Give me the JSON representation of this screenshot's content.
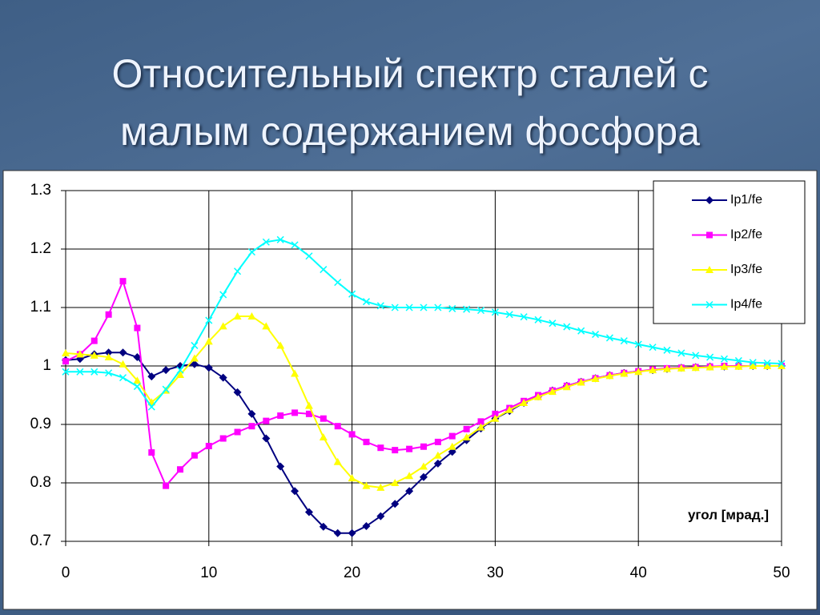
{
  "chart_data": {
    "type": "line",
    "title": "Относительный спектр сталей с малым содержанием фосфора",
    "x_label": "угол [мрад.]",
    "x": [
      0,
      1,
      2,
      3,
      4,
      5,
      6,
      7,
      8,
      9,
      10,
      11,
      12,
      13,
      14,
      15,
      16,
      17,
      18,
      19,
      20,
      21,
      22,
      23,
      24,
      25,
      26,
      27,
      28,
      29,
      30,
      31,
      32,
      33,
      34,
      35,
      36,
      37,
      38,
      39,
      40,
      41,
      42,
      43,
      44,
      45,
      46,
      47,
      48,
      49,
      50
    ],
    "xlim": [
      0,
      50
    ],
    "xticks": [
      0,
      10,
      20,
      30,
      40,
      50
    ],
    "ylim": [
      0.7,
      1.3
    ],
    "yticks": [
      0.7,
      0.8,
      0.9,
      1,
      1.1,
      1.2,
      1.3
    ],
    "grid": true,
    "legend": "top-right",
    "series": [
      {
        "name": "Ip1/fe",
        "color": "#000080",
        "marker": "diamond",
        "values": [
          1.01,
          1.012,
          1.02,
          1.023,
          1.023,
          1.015,
          0.982,
          0.993,
          1.0,
          1.003,
          0.997,
          0.98,
          0.955,
          0.918,
          0.876,
          0.828,
          0.786,
          0.75,
          0.725,
          0.714,
          0.714,
          0.726,
          0.743,
          0.764,
          0.786,
          0.81,
          0.833,
          0.853,
          0.873,
          0.893,
          0.91,
          0.923,
          0.937,
          0.948,
          0.958,
          0.966,
          0.973,
          0.979,
          0.984,
          0.988,
          0.991,
          0.993,
          0.995,
          0.997,
          0.998,
          0.999,
          0.999,
          1.0,
          1.0,
          1.0,
          1.0
        ]
      },
      {
        "name": "Ip2/fe",
        "color": "#ff00ff",
        "marker": "square",
        "values": [
          1.008,
          1.02,
          1.043,
          1.088,
          1.145,
          1.065,
          0.852,
          0.795,
          0.823,
          0.847,
          0.863,
          0.876,
          0.887,
          0.897,
          0.906,
          0.915,
          0.92,
          0.918,
          0.91,
          0.897,
          0.883,
          0.87,
          0.86,
          0.856,
          0.858,
          0.862,
          0.87,
          0.88,
          0.892,
          0.905,
          0.918,
          0.928,
          0.94,
          0.95,
          0.958,
          0.966,
          0.973,
          0.979,
          0.984,
          0.988,
          0.991,
          0.994,
          0.996,
          0.997,
          0.998,
          0.999,
          1.0,
          1.0,
          1.0,
          1.0,
          1.0
        ]
      },
      {
        "name": "Ip3/fe",
        "color": "#ffff00",
        "marker": "triangle",
        "values": [
          1.022,
          1.02,
          1.018,
          1.015,
          1.003,
          0.975,
          0.938,
          0.958,
          0.985,
          1.013,
          1.042,
          1.068,
          1.085,
          1.085,
          1.068,
          1.035,
          0.987,
          0.932,
          0.878,
          0.836,
          0.808,
          0.795,
          0.792,
          0.8,
          0.812,
          0.828,
          0.847,
          0.862,
          0.878,
          0.895,
          0.91,
          0.925,
          0.937,
          0.947,
          0.956,
          0.964,
          0.972,
          0.978,
          0.983,
          0.987,
          0.99,
          0.993,
          0.995,
          0.996,
          0.997,
          0.998,
          0.999,
          0.999,
          1.0,
          1.0,
          1.0
        ]
      },
      {
        "name": "Ip4/fe",
        "color": "#00ffff",
        "marker": "cross",
        "values": [
          0.99,
          0.99,
          0.99,
          0.988,
          0.98,
          0.965,
          0.93,
          0.96,
          0.993,
          1.035,
          1.078,
          1.122,
          1.162,
          1.195,
          1.212,
          1.216,
          1.207,
          1.188,
          1.165,
          1.143,
          1.123,
          1.11,
          1.103,
          1.1,
          1.1,
          1.1,
          1.1,
          1.098,
          1.097,
          1.095,
          1.092,
          1.088,
          1.084,
          1.079,
          1.073,
          1.067,
          1.06,
          1.054,
          1.048,
          1.043,
          1.037,
          1.032,
          1.027,
          1.022,
          1.018,
          1.015,
          1.012,
          1.009,
          1.006,
          1.005,
          1.004
        ]
      }
    ]
  }
}
